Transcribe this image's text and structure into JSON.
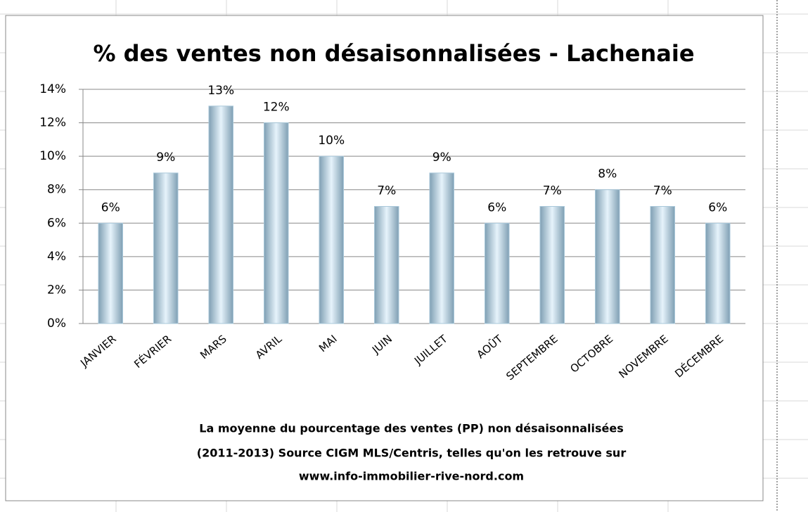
{
  "chart_data": {
    "type": "bar",
    "title": "% des ventes non désaisonnalisées - Lachenaie",
    "categories": [
      "JANVIER",
      "FÉVRIER",
      "MARS",
      "AVRIL",
      "MAI",
      "JUIN",
      "JUILLET",
      "AOÛT",
      "SEPTEMBRE",
      "OCTOBRE",
      "NOVEMBRE",
      "DÉCEMBRE"
    ],
    "values": [
      6,
      9,
      13,
      12,
      10,
      7,
      9,
      6,
      7,
      8,
      7,
      6
    ],
    "value_labels": [
      "6%",
      "9%",
      "13%",
      "12%",
      "10%",
      "7%",
      "9%",
      "6%",
      "7%",
      "8%",
      "7%",
      "6%"
    ],
    "color": "#a9c8da",
    "ylim": [
      0,
      14
    ],
    "yticks": [
      {
        "value": 0,
        "label": "0%"
      },
      {
        "value": 2,
        "label": "2%"
      },
      {
        "value": 4,
        "label": "4%"
      },
      {
        "value": 6,
        "label": "6%"
      },
      {
        "value": 8,
        "label": "8%"
      },
      {
        "value": 10,
        "label": "10%"
      },
      {
        "value": 12,
        "label": "12%"
      },
      {
        "value": 14,
        "label": "14%"
      }
    ],
    "grid": true,
    "caption": [
      "La moyenne du pourcentage des ventes (PP) non désaisonnalisées",
      "(2011-2013) Source CIGM MLS/Centris, telles qu'on les retrouve sur",
      "www.info-immobilier-rive-nord.com"
    ]
  }
}
